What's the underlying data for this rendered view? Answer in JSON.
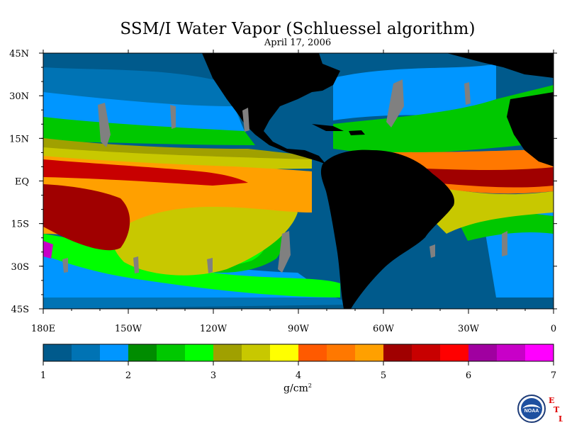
{
  "title": "SSM/I Water Vapor (Schluessel algorithm)",
  "subtitle": "April 17, 2006",
  "units": "g/cm",
  "units_exponent": "2",
  "map": {
    "lat_labels": [
      "45N",
      "30N",
      "15N",
      "EQ",
      "15S",
      "30S",
      "45S"
    ],
    "lon_labels": [
      "180E",
      "150W",
      "120W",
      "90W",
      "60W",
      "30W",
      "0"
    ],
    "lat_range": [
      -45,
      45
    ],
    "lon_range": [
      -180,
      0
    ],
    "land_color": "#000000",
    "missing_color": "#808080"
  },
  "colorbar": {
    "range": [
      1,
      7
    ],
    "tick_labels": [
      "1",
      "2",
      "3",
      "4",
      "5",
      "6",
      "7"
    ],
    "colors": [
      "#005a8c",
      "#0073b4",
      "#0096ff",
      "#008c00",
      "#00c800",
      "#00ff00",
      "#a0a000",
      "#c8c800",
      "#ffff00",
      "#ff5a00",
      "#ff7800",
      "#ffa000",
      "#a00000",
      "#c80000",
      "#ff0000",
      "#a000a0",
      "#c800c8",
      "#ff00ff"
    ]
  },
  "logo": {
    "name": "NOAA",
    "letters": [
      "E",
      "T",
      "L"
    ]
  }
}
